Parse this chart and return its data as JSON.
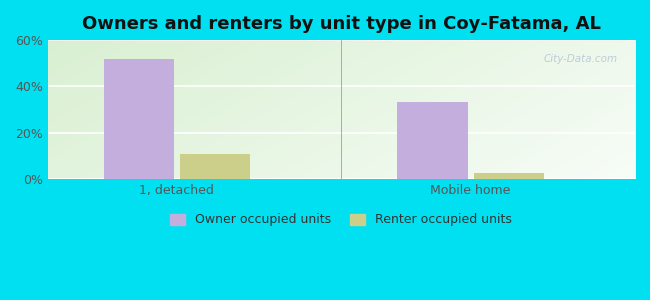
{
  "title": "Owners and renters by unit type in Coy-Fatama, AL",
  "categories": [
    "1, detached",
    "Mobile home"
  ],
  "series": [
    {
      "name": "Owner occupied units",
      "values": [
        52.0,
        33.5
      ],
      "color": "#c4aedd"
    },
    {
      "name": "Renter occupied units",
      "values": [
        11.0,
        2.5
      ],
      "color": "#cccf8a"
    }
  ],
  "ylim": [
    0,
    60
  ],
  "yticks": [
    0,
    20,
    40,
    60
  ],
  "ytick_labels": [
    "0%",
    "20%",
    "40%",
    "60%"
  ],
  "bar_width": 0.12,
  "group_centers": [
    0.22,
    0.72
  ],
  "bar_gap": 0.01,
  "bg_outer": "#00e0f0",
  "title_fontsize": 13,
  "tick_fontsize": 9,
  "legend_fontsize": 9
}
